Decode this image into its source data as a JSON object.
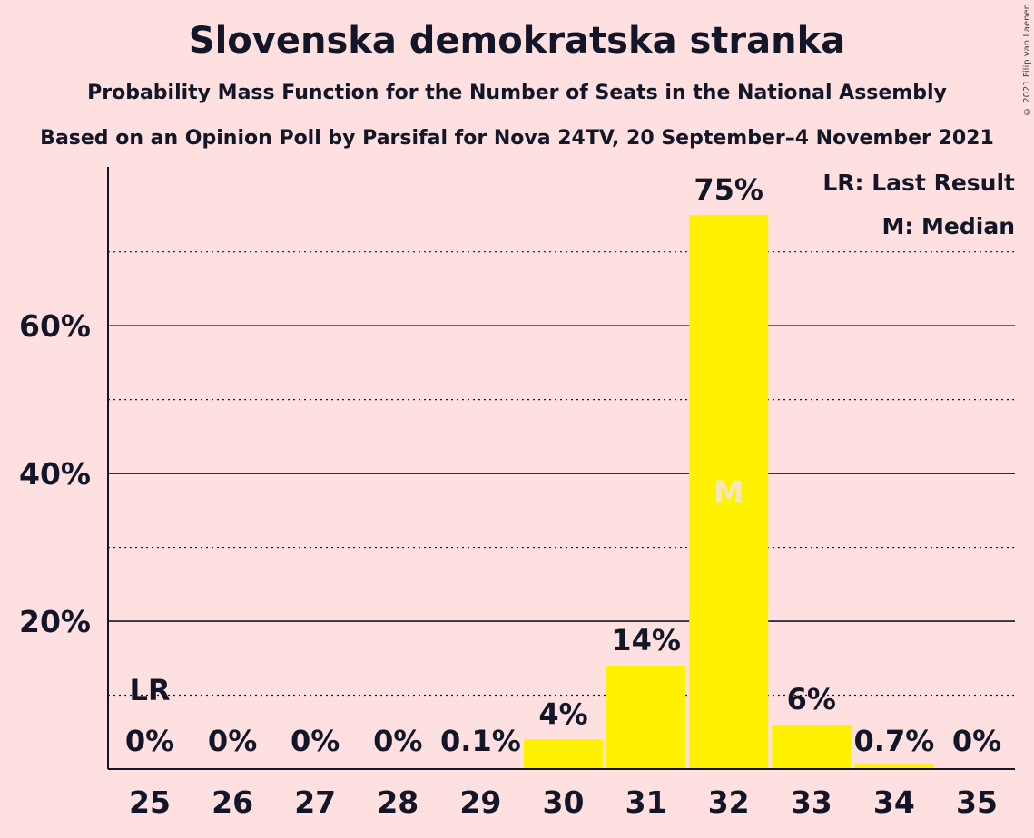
{
  "title": "Slovenska demokratska stranka",
  "subtitle": "Probability Mass Function for the Number of Seats in the National Assembly",
  "subtitle2": "Based on an Opinion Poll by Parsifal for Nova 24TV, 20 September–4 November 2021",
  "copyright": "© 2021 Filip van Laenen",
  "colors": {
    "background": "#FFE0E0",
    "bar": "#FFF200",
    "text": "#121628",
    "median_label": "#F4E6C0"
  },
  "chart_data": {
    "type": "bar",
    "categories": [
      "25",
      "26",
      "27",
      "28",
      "29",
      "30",
      "31",
      "32",
      "33",
      "34",
      "35"
    ],
    "values": [
      0,
      0,
      0,
      0,
      0.1,
      4,
      14,
      75,
      6,
      0.7,
      0
    ],
    "value_labels": [
      "0%",
      "0%",
      "0%",
      "0%",
      "0.1%",
      "4%",
      "14%",
      "75%",
      "6%",
      "0.7%",
      "0%"
    ],
    "ylim": [
      0,
      81.5
    ],
    "yticks": [
      20,
      40,
      60
    ],
    "ytick_labels": [
      "20%",
      "40%",
      "60%"
    ],
    "minor_gridlines": [
      10,
      30,
      50,
      70
    ],
    "last_result": {
      "category": "25",
      "label": "LR"
    },
    "median": {
      "category": "32",
      "label": "M"
    },
    "legend": [
      "LR: Last Result",
      "M: Median"
    ],
    "legend_position": "top-right"
  }
}
